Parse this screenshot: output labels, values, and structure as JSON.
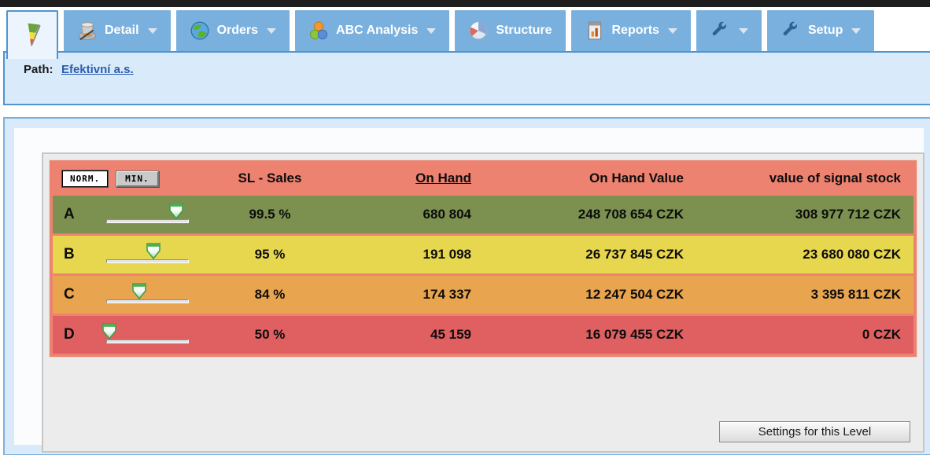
{
  "tabs": [
    {
      "label": "",
      "icon": "abc-classification-icon",
      "selected": true,
      "dropdown": false
    },
    {
      "label": "Detail",
      "icon": "magic-hat-icon",
      "selected": false,
      "dropdown": true
    },
    {
      "label": "Orders",
      "icon": "globe-icon",
      "selected": false,
      "dropdown": true
    },
    {
      "label": "ABC Analysis",
      "icon": "abc-spheres-icon",
      "selected": false,
      "dropdown": true
    },
    {
      "label": "Structure",
      "icon": "structure-pie-icon",
      "selected": false,
      "dropdown": false
    },
    {
      "label": "Reports",
      "icon": "report-icon",
      "selected": false,
      "dropdown": true
    },
    {
      "label": "",
      "icon": "wrench-icon",
      "selected": false,
      "dropdown": true
    },
    {
      "label": "Setup",
      "icon": "wrench-icon",
      "selected": false,
      "dropdown": true
    }
  ],
  "path": {
    "label": "Path:",
    "link": "Efektivní a.s."
  },
  "table": {
    "view_buttons": {
      "norm": "NORM.",
      "min": "MIN."
    },
    "headers": {
      "sl_sales": "SL - Sales",
      "on_hand": "On Hand",
      "on_hand_value": "On Hand Value",
      "signal_stock": "value of signal stock"
    },
    "rows": [
      {
        "class": "A",
        "slider_pct": 85,
        "sl": "99.5 %",
        "on_hand": "680 804",
        "on_hand_value": "248 708 654 CZK",
        "signal": "308 977 712 CZK",
        "color": "#7c9150"
      },
      {
        "class": "B",
        "slider_pct": 57,
        "sl": "95 %",
        "on_hand": "191 098",
        "on_hand_value": "26 737 845 CZK",
        "signal": "23 680 080 CZK",
        "color": "#e7d74e"
      },
      {
        "class": "C",
        "slider_pct": 40,
        "sl": "84 %",
        "on_hand": "174 337",
        "on_hand_value": "12 247 504 CZK",
        "signal": "3 395 811 CZK",
        "color": "#e8a44e"
      },
      {
        "class": "D",
        "slider_pct": 4,
        "sl": "50 %",
        "on_hand": "45 159",
        "on_hand_value": "16 079 455 CZK",
        "signal": "0 CZK",
        "color": "#e06062"
      }
    ]
  },
  "footer": {
    "settings_button": "Settings for this Level"
  },
  "colors": {
    "tab_blue": "#7ab0de",
    "selected_tab_border": "#4f94d1",
    "panel_bg": "#d9eafa",
    "table_salmon": "#ee8270",
    "row_a": "#7c9150",
    "row_b": "#e7d74e",
    "row_c": "#e8a44e",
    "row_d": "#e06062"
  }
}
